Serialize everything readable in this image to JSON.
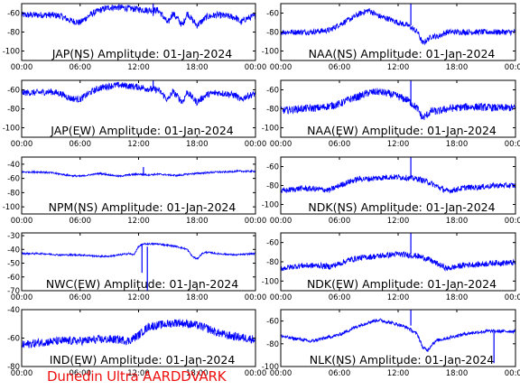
{
  "figure": {
    "credit": "Dunedin Ultra AARDDVARK",
    "x_tick_labels": [
      "00:00",
      "06:00",
      "12:00",
      "18:00",
      "00:00"
    ],
    "trace_color": "#0000ff",
    "credit_color": "#ee1111"
  },
  "chart_data": [
    {
      "type": "line",
      "title": "JAP(NS) Amplitude: 01-Jan-2024",
      "xlim": [
        0,
        24
      ],
      "ylim": [
        -110,
        -50
      ],
      "yticks": [
        -60,
        -80,
        -100
      ],
      "ytick_labels": [
        "-60",
        "-80",
        "-100"
      ],
      "x": [
        0,
        1.5,
        3,
        4,
        5,
        6,
        7,
        8,
        9,
        10,
        11,
        12,
        13,
        14,
        14.5,
        15,
        15.5,
        16,
        16.5,
        17,
        17.5,
        18,
        19,
        20,
        21,
        22,
        22.5,
        23,
        24
      ],
      "y": [
        -62,
        -62,
        -62,
        -63,
        -68,
        -70,
        -62,
        -57,
        -54,
        -54,
        -55,
        -56,
        -57,
        -57,
        -63,
        -71,
        -60,
        -66,
        -73,
        -60,
        -67,
        -73,
        -64,
        -62,
        -63,
        -65,
        -70,
        -66,
        -63
      ],
      "noise": 3.5,
      "spikes": [
        [
          13.5,
          -50,
          -63
        ]
      ]
    },
    {
      "type": "line",
      "title": "NAA(NS) Amplitude: 01-Jan-2024",
      "xlim": [
        0,
        24
      ],
      "ylim": [
        -110,
        -50
      ],
      "yticks": [
        -60,
        -80,
        -100
      ],
      "ytick_labels": [
        "-60",
        "-80",
        "-100"
      ],
      "x": [
        0,
        3,
        5,
        6,
        7,
        8,
        9,
        10,
        11,
        12,
        13,
        14,
        14.5,
        15,
        15.5,
        16,
        17,
        18,
        19,
        20,
        22,
        24
      ],
      "y": [
        -80,
        -80,
        -78,
        -72,
        -67,
        -61,
        -57,
        -63,
        -66,
        -70,
        -73,
        -80,
        -92,
        -88,
        -84,
        -85,
        -80,
        -80,
        -80,
        -80,
        -80,
        -80
      ],
      "noise": 3,
      "spikes": [
        [
          13.3,
          -50,
          -73
        ]
      ]
    },
    {
      "type": "line",
      "title": "JAP(EW) Amplitude: 01-Jan-2024",
      "xlim": [
        0,
        24
      ],
      "ylim": [
        -110,
        -50
      ],
      "yticks": [
        -60,
        -80,
        -100
      ],
      "ytick_labels": [
        "-60",
        "-80",
        "-100"
      ],
      "x": [
        0,
        1.5,
        3,
        4,
        5,
        6,
        7,
        8,
        9,
        10,
        11,
        12,
        13,
        14,
        14.5,
        15,
        15.5,
        16,
        16.5,
        17,
        17.5,
        18,
        19,
        20,
        21,
        22,
        22.5,
        23,
        24
      ],
      "y": [
        -63,
        -63,
        -62,
        -64,
        -69,
        -70,
        -63,
        -58,
        -56,
        -55,
        -56,
        -57,
        -59,
        -60,
        -65,
        -71,
        -62,
        -67,
        -73,
        -62,
        -68,
        -73,
        -65,
        -63,
        -64,
        -66,
        -71,
        -67,
        -64
      ],
      "noise": 3.5,
      "spikes": [
        [
          13.5,
          -50,
          -60
        ]
      ]
    },
    {
      "type": "line",
      "title": "NAA(EW) Amplitude: 01-Jan-2024",
      "xlim": [
        0,
        24
      ],
      "ylim": [
        -110,
        -50
      ],
      "yticks": [
        -60,
        -80,
        -100
      ],
      "ytick_labels": [
        "-60",
        "-80",
        "-100"
      ],
      "x": [
        0,
        2,
        4,
        5,
        6,
        7,
        8,
        9,
        10,
        11,
        12,
        13,
        14,
        14.5,
        15,
        15.5,
        16,
        17,
        18,
        19,
        20,
        22,
        24
      ],
      "y": [
        -82,
        -80,
        -79,
        -77,
        -75,
        -70,
        -67,
        -63,
        -62,
        -64,
        -67,
        -71,
        -80,
        -90,
        -86,
        -82,
        -83,
        -80,
        -79,
        -78,
        -78,
        -79,
        -79
      ],
      "noise": 4,
      "spikes": [
        [
          13.3,
          -50,
          -75
        ]
      ]
    },
    {
      "type": "line",
      "title": "NPM(NS) Amplitude: 01-Jan-2024",
      "xlim": [
        0,
        24
      ],
      "ylim": [
        -110,
        -30
      ],
      "yticks": [
        -40,
        -60,
        -80,
        -100
      ],
      "ytick_labels": [
        "-40",
        "-60",
        "-80",
        "-100"
      ],
      "x": [
        0,
        1,
        2,
        3,
        4,
        5,
        6,
        7,
        8,
        9,
        10,
        11,
        12,
        13,
        14,
        15,
        16,
        17,
        18,
        19,
        20,
        21,
        22,
        23,
        24
      ],
      "y": [
        -51,
        -51,
        -51,
        -52,
        -54,
        -56,
        -57,
        -55,
        -53,
        -55,
        -57,
        -55,
        -54,
        -55,
        -54,
        -55,
        -56,
        -54,
        -53,
        -52,
        -51,
        -51,
        -50,
        -50,
        -50
      ],
      "noise": 1.2,
      "spikes": [
        [
          12.5,
          -44,
          -56
        ]
      ]
    },
    {
      "type": "line",
      "title": "NDK(NS) Amplitude: 01-Jan-2024",
      "xlim": [
        0,
        24
      ],
      "ylim": [
        -110,
        -50
      ],
      "yticks": [
        -60,
        -80,
        -100
      ],
      "ytick_labels": [
        "-60",
        "-80",
        "-100"
      ],
      "x": [
        0,
        2,
        4,
        5,
        6,
        7,
        8,
        9,
        10,
        11,
        12,
        13,
        14,
        15,
        16,
        17,
        18,
        19,
        20,
        21,
        22,
        23,
        24
      ],
      "y": [
        -86,
        -83,
        -84,
        -85,
        -80,
        -76,
        -73,
        -73,
        -72,
        -71,
        -71,
        -72,
        -73,
        -76,
        -81,
        -86,
        -84,
        -82,
        -82,
        -81,
        -80,
        -80,
        -80
      ],
      "noise": 3,
      "spikes": [
        [
          13.3,
          -50,
          -72
        ]
      ]
    },
    {
      "type": "line",
      "title": "NWC(EW) Amplitude: 01-Jan-2024",
      "xlim": [
        0,
        24
      ],
      "ylim": [
        -70,
        -28
      ],
      "yticks": [
        -30,
        -40,
        -50,
        -60,
        -70
      ],
      "ytick_labels": [
        "-30",
        "-40",
        "-50",
        "-60",
        "-70"
      ],
      "x": [
        0,
        2,
        4,
        6,
        8,
        9,
        10,
        11,
        11.5,
        12,
        12.5,
        13,
        14,
        15,
        16,
        17,
        17.5,
        18,
        18.5,
        19,
        20,
        22,
        24
      ],
      "y": [
        -43,
        -43,
        -44,
        -44,
        -45,
        -45,
        -44,
        -43,
        -44,
        -38,
        -36,
        -36,
        -36,
        -37,
        -38,
        -40,
        -45,
        -47,
        -43,
        -42,
        -43,
        -44,
        -43
      ],
      "noise": 0.6,
      "spikes": [
        [
          12.35,
          -36,
          -57
        ],
        [
          12.9,
          -38,
          -71
        ]
      ]
    },
    {
      "type": "line",
      "title": "NDK(EW) Amplitude: 01-Jan-2024",
      "xlim": [
        0,
        24
      ],
      "ylim": [
        -110,
        -50
      ],
      "yticks": [
        -60,
        -80,
        -100
      ],
      "ytick_labels": [
        "-60",
        "-80",
        "-100"
      ],
      "x": [
        0,
        2,
        4,
        5,
        6,
        7,
        8,
        9,
        10,
        11,
        12,
        13,
        14,
        15,
        16,
        17,
        18,
        19,
        20,
        21,
        22,
        23,
        24
      ],
      "y": [
        -87,
        -84,
        -84,
        -85,
        -82,
        -78,
        -76,
        -75,
        -74,
        -73,
        -72,
        -73,
        -74,
        -77,
        -82,
        -87,
        -85,
        -83,
        -83,
        -82,
        -81,
        -81,
        -81
      ],
      "noise": 3,
      "spikes": [
        [
          13.3,
          -50,
          -72
        ]
      ]
    },
    {
      "type": "line",
      "title": "IND(EW) Amplitude: 01-Jan-2024",
      "xlim": [
        0,
        24
      ],
      "ylim": [
        -80,
        -40
      ],
      "yticks": [
        -40,
        -60,
        -80
      ],
      "ytick_labels": [
        "-40",
        "-60",
        "-80"
      ],
      "x": [
        0,
        2,
        4,
        6,
        8,
        10,
        11,
        12,
        13,
        14,
        15,
        16,
        17,
        18,
        19,
        20,
        21,
        22,
        23,
        24
      ],
      "y": [
        -65,
        -63,
        -62,
        -62,
        -61,
        -61,
        -62,
        -58,
        -52,
        -51,
        -50,
        -49,
        -50,
        -51,
        -53,
        -56,
        -58,
        -59,
        -60,
        -61
      ],
      "noise": 3,
      "spikes": []
    },
    {
      "type": "line",
      "title": "NLK(NS) Amplitude: 01-Jan-2024",
      "xlim": [
        0,
        24
      ],
      "ylim": [
        -100,
        -50
      ],
      "yticks": [
        -60,
        -80,
        -100
      ],
      "ytick_labels": [
        "-60",
        "-80",
        "-100"
      ],
      "x": [
        0,
        1,
        2,
        3,
        4,
        5,
        6,
        7,
        8,
        9,
        10,
        11,
        12,
        13,
        14,
        14.5,
        15,
        15.5,
        16,
        17,
        18,
        19,
        20,
        21,
        22,
        23,
        24
      ],
      "y": [
        -73,
        -75,
        -76,
        -78,
        -76,
        -74,
        -72,
        -68,
        -64,
        -61,
        -59,
        -61,
        -63,
        -66,
        -72,
        -83,
        -86,
        -80,
        -77,
        -75,
        -73,
        -71,
        -70,
        -69,
        -69,
        -69,
        -69
      ],
      "noise": 1.5,
      "spikes": [
        [
          13.3,
          -50,
          -64
        ],
        [
          21.8,
          -70,
          -97
        ]
      ]
    }
  ]
}
